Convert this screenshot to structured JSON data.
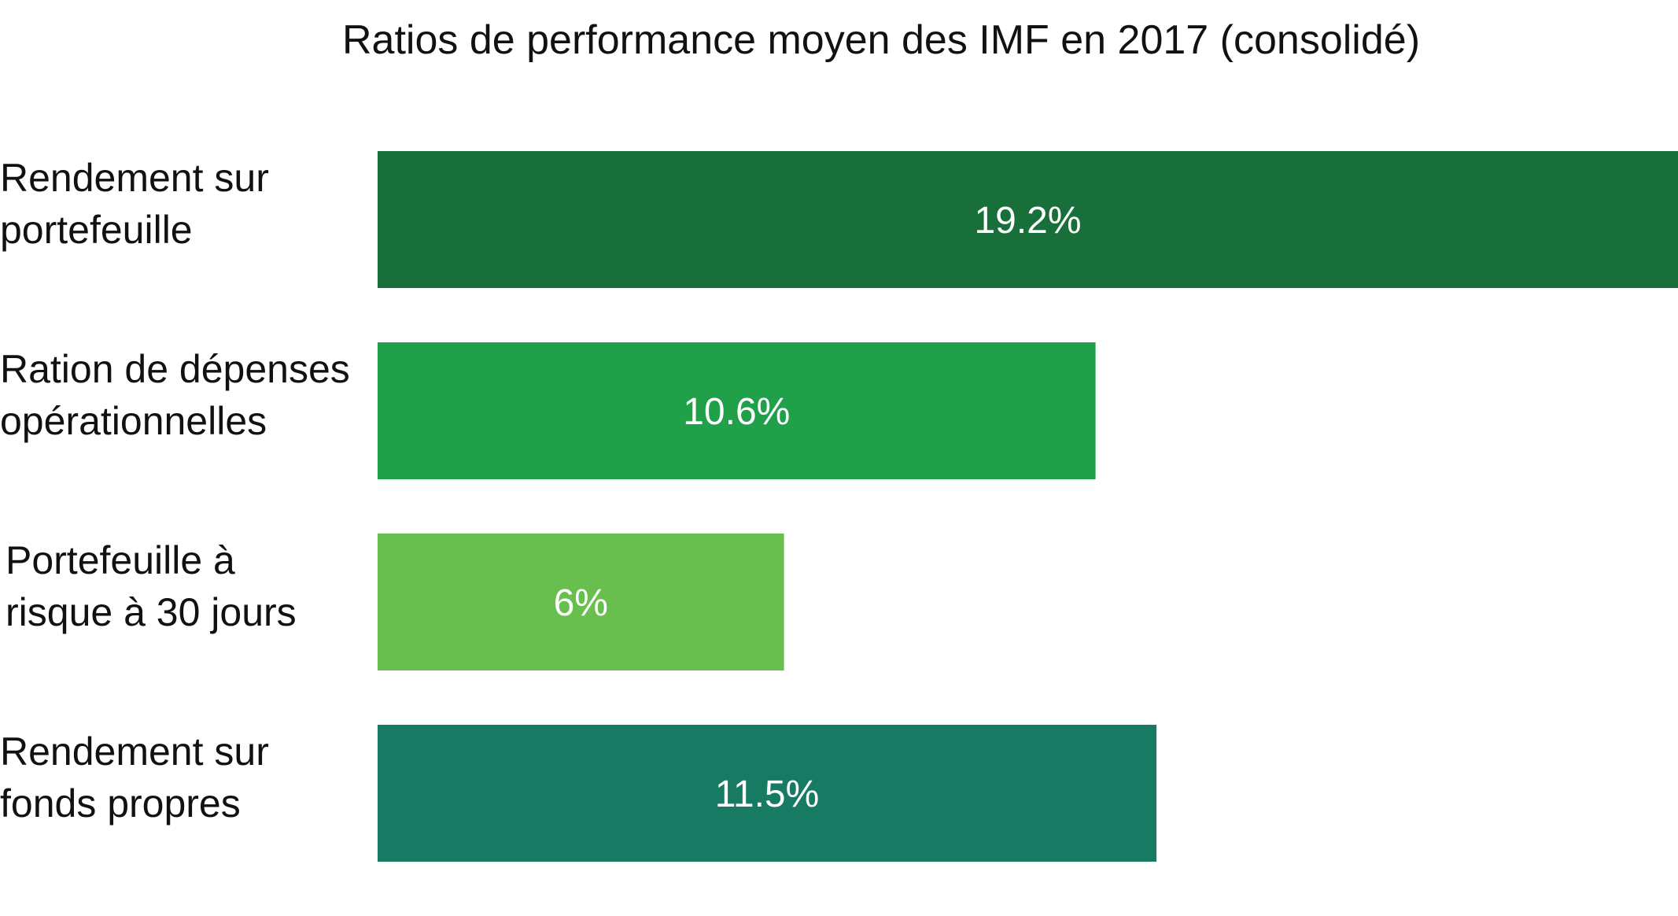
{
  "chart_data": {
    "type": "bar",
    "orientation": "horizontal",
    "title": "Ratios de performance moyen des IMF en 2017 (consolidé)",
    "xlabel": "",
    "ylabel": "",
    "unit": "%",
    "xlim": [
      0,
      19.2
    ],
    "grid": false,
    "legend": "none",
    "categories": [
      [
        "Rendement sur",
        "portefeuille"
      ],
      [
        "Ration de dépenses",
        "opérationnelles"
      ],
      [
        "Portefeuille à",
        "risque à 30 jours"
      ],
      [
        "Rendement sur",
        "fonds propres"
      ]
    ],
    "values": [
      19.2,
      10.6,
      6,
      11.5
    ],
    "value_labels": [
      "19.2%",
      "10.6%",
      "6%",
      "11.5%"
    ],
    "colors": [
      "#186f39",
      "#21a04a",
      "#68bf4e",
      "#167b62"
    ]
  }
}
